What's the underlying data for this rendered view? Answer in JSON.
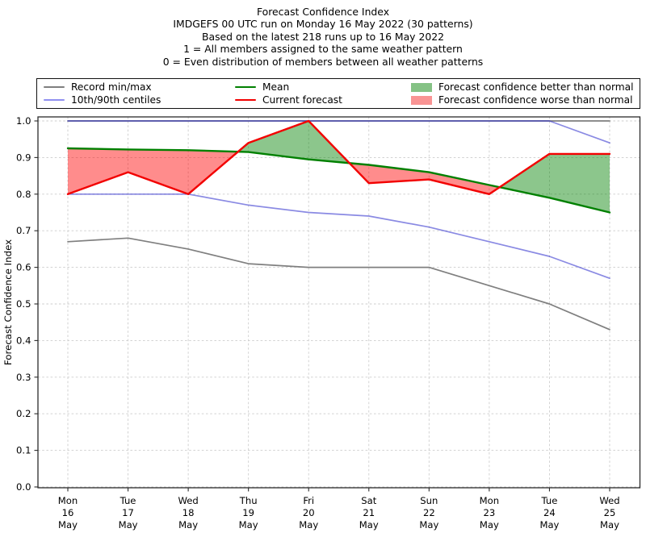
{
  "header": {
    "title_lines": [
      "Forecast Confidence Index",
      "IMDGEFS 00 UTC run on Monday 16 May 2022 (30 patterns)",
      "Based on the latest 218 runs up to 16 May 2022",
      "1 = All members assigned to the same weather pattern",
      "0 = Even distribution of members between all weather patterns"
    ]
  },
  "legend": {
    "entries": [
      {
        "label": "Record min/max",
        "swatch": "line",
        "color": "#7f7f7f"
      },
      {
        "label": "10th/90th centiles",
        "swatch": "line",
        "color": "#8f8ff0"
      },
      {
        "label": "Mean",
        "swatch": "line",
        "color": "#008000"
      },
      {
        "label": "Current forecast",
        "swatch": "line",
        "color": "#f20000"
      },
      {
        "label": "Forecast confidence better than normal",
        "swatch": "patch",
        "color": "#85c285"
      },
      {
        "label": "Forecast confidence worse than normal",
        "swatch": "patch",
        "color": "#f99494"
      }
    ]
  },
  "axes": {
    "ylabel": "Forecast Confidence Index"
  },
  "chart_data": {
    "type": "line",
    "title": "Forecast Confidence Index",
    "xlabel": "",
    "ylabel": "Forecast Confidence Index",
    "ylim": [
      0.0,
      1.0
    ],
    "yticks": [
      0.0,
      0.1,
      0.2,
      0.3,
      0.4,
      0.5,
      0.6,
      0.7,
      0.8,
      0.9,
      1.0
    ],
    "grid": true,
    "legend_position": "top",
    "categories": [
      "Mon 16 May",
      "Tue 17 May",
      "Wed 18 May",
      "Thu 19 May",
      "Fri 20 May",
      "Sat 21 May",
      "Sun 22 May",
      "Mon 23 May",
      "Tue 24 May",
      "Wed 25 May"
    ],
    "series": [
      {
        "id": "record_max",
        "name": "Record max",
        "color": "#7f7f7f",
        "width": 1.7,
        "values": [
          1.0,
          1.0,
          1.0,
          1.0,
          1.0,
          1.0,
          1.0,
          1.0,
          1.0,
          1.0
        ]
      },
      {
        "id": "record_min",
        "name": "Record min",
        "color": "#7f7f7f",
        "width": 1.7,
        "values": [
          0.67,
          0.68,
          0.65,
          0.61,
          0.6,
          0.6,
          0.6,
          0.55,
          0.5,
          0.43
        ]
      },
      {
        "id": "centile_90",
        "name": "90th centile",
        "color": "#2929cc",
        "opacity": 0.55,
        "width": 1.7,
        "values": [
          1.0,
          1.0,
          1.0,
          1.0,
          1.0,
          1.0,
          1.0,
          1.0,
          1.0,
          0.94
        ]
      },
      {
        "id": "centile_10",
        "name": "10th centile",
        "color": "#2929cc",
        "opacity": 0.55,
        "width": 1.7,
        "values": [
          0.8,
          0.8,
          0.8,
          0.77,
          0.75,
          0.74,
          0.71,
          0.67,
          0.63,
          0.57
        ]
      },
      {
        "id": "mean",
        "name": "Mean",
        "color": "#008000",
        "width": 2.4,
        "values": [
          0.925,
          0.922,
          0.92,
          0.915,
          0.895,
          0.88,
          0.86,
          0.825,
          0.79,
          0.75
        ]
      },
      {
        "id": "current",
        "name": "Current forecast",
        "color": "#f20000",
        "width": 2.4,
        "values": [
          0.8,
          0.86,
          0.8,
          0.94,
          1.0,
          0.83,
          0.84,
          0.8,
          0.91,
          0.91
        ]
      }
    ],
    "fills": {
      "between": [
        "current",
        "mean"
      ],
      "better_color": "#008000",
      "worse_color": "#ff0000",
      "opacity": 0.45,
      "better_label": "Forecast confidence better than normal",
      "worse_label": "Forecast confidence worse than normal"
    }
  }
}
